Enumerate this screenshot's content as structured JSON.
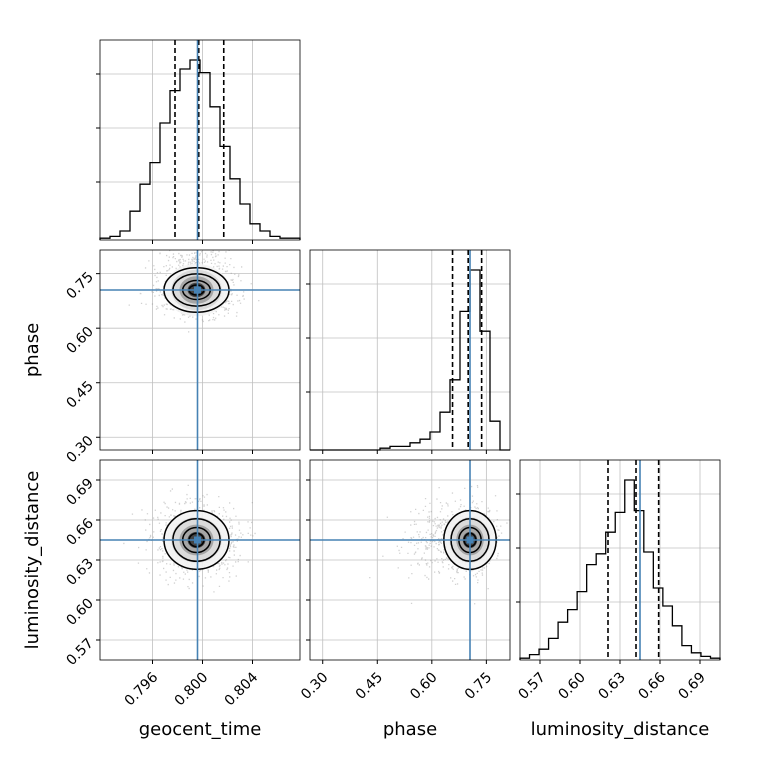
{
  "chart_data": {
    "type": "corner",
    "parameters": [
      "geocent_time",
      "phase",
      "luminosity_distance"
    ],
    "axis_labels": {
      "x": [
        "geocent_time",
        "phase",
        "luminosity_distance"
      ],
      "y": [
        "phase",
        "luminosity_distance"
      ]
    },
    "tick_labels": {
      "geocent_time": [
        "0.796",
        "0.800",
        "0.804"
      ],
      "phase": [
        "0.30",
        "0.45",
        "0.60",
        "0.75"
      ],
      "luminosity_distance": [
        "0.57",
        "0.60",
        "0.63",
        "0.66",
        "0.69"
      ]
    },
    "ranges": {
      "geocent_time": [
        0.7918,
        0.8078
      ],
      "phase": [
        0.265,
        0.815
      ],
      "luminosity_distance": [
        0.555,
        0.705
      ]
    },
    "truths": {
      "geocent_time": 0.7996,
      "phase": 0.705,
      "luminosity_distance": 0.645
    },
    "quantiles": {
      "geocent_time": [
        0.7978,
        0.7997,
        0.8017
      ],
      "phase": [
        0.657,
        0.7,
        0.737
      ],
      "luminosity_distance": [
        0.621,
        0.642,
        0.659
      ]
    },
    "histograms": {
      "geocent_time": [
        0.01,
        0.02,
        0.05,
        0.16,
        0.31,
        0.43,
        0.65,
        0.83,
        0.95,
        1.0,
        0.93,
        0.74,
        0.52,
        0.34,
        0.2,
        0.09,
        0.05,
        0.02,
        0.01,
        0.01
      ],
      "phase": [
        0,
        0,
        0,
        0,
        0,
        0,
        0,
        0.01,
        0.02,
        0.02,
        0.04,
        0.06,
        0.1,
        0.21,
        0.39,
        0.77,
        1.0,
        0.66,
        0.16,
        0
      ],
      "luminosity_distance": [
        0.01,
        0.03,
        0.06,
        0.12,
        0.21,
        0.28,
        0.38,
        0.53,
        0.59,
        0.71,
        0.82,
        1.0,
        0.83,
        0.6,
        0.4,
        0.3,
        0.19,
        0.08,
        0.04,
        0.02,
        0.01
      ]
    },
    "grid": true,
    "colors": {
      "truth": "#4682b4",
      "hist": "#000000",
      "contour": "#000000",
      "grid": "#c0c0c0"
    }
  }
}
